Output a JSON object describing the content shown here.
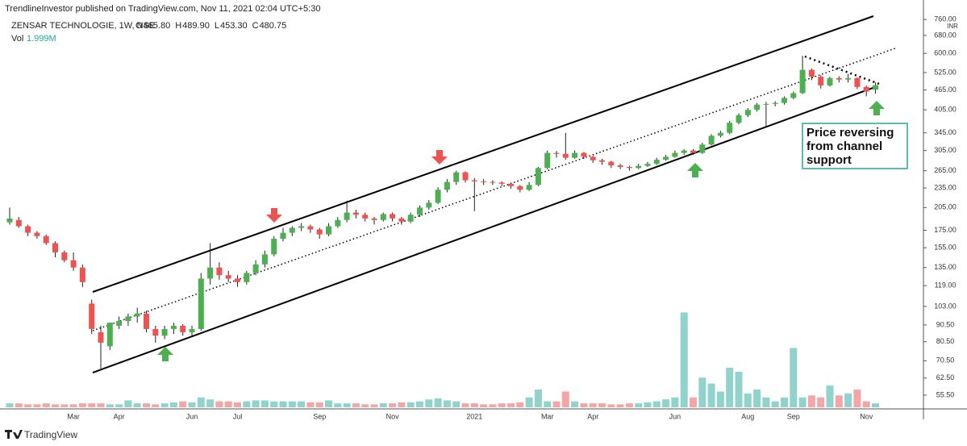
{
  "chart_data": {
    "type": "candlestick",
    "publisher": "TrendlineInvestor published on TradingView.com, Nov 11, 2021 02:04 UTC+5:30",
    "symbol": "ZENSAR TECHNOLOGIE, 1W, NSE",
    "ohlc_legend": [
      {
        "key": "O",
        "value": "465.80"
      },
      {
        "key": "H",
        "value": "489.90"
      },
      {
        "key": "L",
        "value": "453.30"
      },
      {
        "key": "C",
        "value": "480.75"
      }
    ],
    "volume_label": "Vol",
    "volume_value": "1.999M",
    "currency": "INR",
    "annotation": [
      "Price reversing",
      "from channel",
      "support"
    ],
    "footer": "TradingView",
    "log_scale": true,
    "up_color": "#4caf50",
    "down_color": "#ef5350",
    "volume_up_color": "#8fd3cc",
    "volume_down_color": "#f4a6a6",
    "ylim": [
      51,
      800
    ],
    "yticks": [
      {
        "value": 760,
        "label": "760.00"
      },
      {
        "value": 680,
        "label": "680.00"
      },
      {
        "value": 600,
        "label": "600.00"
      },
      {
        "value": 525,
        "label": "525.00"
      },
      {
        "value": 465,
        "label": "465.00"
      },
      {
        "value": 405,
        "label": "405.00"
      },
      {
        "value": 345,
        "label": "345.00"
      },
      {
        "value": 305,
        "label": "305.00"
      },
      {
        "value": 265,
        "label": "265.00"
      },
      {
        "value": 235,
        "label": "235.00"
      },
      {
        "value": 205,
        "label": "205.00"
      },
      {
        "value": 175,
        "label": "175.00"
      },
      {
        "value": 155,
        "label": "155.00"
      },
      {
        "value": 135,
        "label": "135.00"
      },
      {
        "value": 119,
        "label": "119.00"
      },
      {
        "value": 103,
        "label": "103.00"
      },
      {
        "value": 90.5,
        "label": "90.50"
      },
      {
        "value": 80.5,
        "label": "80.50"
      },
      {
        "value": 70.5,
        "label": "70.50"
      },
      {
        "value": 62.5,
        "label": "62.50"
      },
      {
        "value": 55.5,
        "label": "55.50"
      }
    ],
    "y2lim": [
      0,
      200
    ],
    "categories": [
      null,
      null,
      null,
      null,
      null,
      null,
      null,
      "Mar",
      null,
      null,
      null,
      null,
      "Apr",
      null,
      null,
      null,
      null,
      null,
      null,
      null,
      "Jun",
      null,
      null,
      null,
      null,
      "Jul",
      null,
      null,
      null,
      null,
      null,
      null,
      null,
      null,
      "Sep",
      null,
      null,
      null,
      null,
      null,
      null,
      null,
      "Nov",
      null,
      null,
      null,
      null,
      null,
      null,
      null,
      null,
      "2021",
      null,
      null,
      null,
      null,
      null,
      null,
      null,
      "Mar",
      null,
      null,
      null,
      null,
      "Apr",
      null,
      null,
      null,
      null,
      null,
      null,
      null,
      null,
      "Jun",
      null,
      null,
      null,
      null,
      null,
      null,
      null,
      "Aug",
      null,
      null,
      null,
      null,
      "Sep",
      null,
      null,
      null,
      null,
      null,
      null,
      null,
      "Nov",
      null
    ],
    "open": [
      185,
      188,
      180,
      172,
      168,
      160,
      150,
      142,
      135,
      105,
      86,
      78,
      90,
      93,
      96,
      98,
      88,
      84,
      88,
      90,
      86,
      88,
      125,
      135,
      128,
      125,
      122,
      130,
      138,
      148,
      165,
      172,
      178,
      180,
      176,
      170,
      180,
      188,
      198,
      195,
      190,
      188,
      196,
      190,
      186,
      195,
      205,
      212,
      232,
      245,
      262,
      248,
      246,
      245,
      244,
      242,
      238,
      232,
      240,
      270,
      300,
      298,
      290,
      300,
      292,
      285,
      282,
      275,
      272,
      270,
      274,
      278,
      286,
      292,
      300,
      305,
      300,
      318,
      338,
      345,
      370,
      390,
      405,
      420,
      422,
      425,
      440,
      455,
      535,
      510,
      480,
      505,
      500,
      505,
      475,
      465.8
    ],
    "high": [
      205,
      192,
      182,
      174,
      170,
      162,
      152,
      150,
      138,
      108,
      90,
      92,
      96,
      98,
      102,
      100,
      90,
      90,
      92,
      91,
      90,
      130,
      160,
      140,
      132,
      128,
      132,
      142,
      152,
      168,
      178,
      180,
      184,
      182,
      178,
      184,
      192,
      215,
      202,
      198,
      192,
      198,
      198,
      192,
      198,
      208,
      216,
      236,
      250,
      265,
      264,
      252,
      250,
      248,
      246,
      244,
      240,
      245,
      272,
      305,
      304,
      345,
      305,
      302,
      294,
      288,
      284,
      278,
      274,
      278,
      282,
      290,
      296,
      305,
      308,
      308,
      322,
      342,
      350,
      375,
      395,
      410,
      425,
      428,
      430,
      445,
      460,
      590,
      540,
      515,
      510,
      512,
      520,
      508,
      480,
      489.9
    ],
    "low": [
      182,
      178,
      168,
      165,
      158,
      145,
      140,
      132,
      118,
      85,
      66,
      76,
      88,
      90,
      92,
      86,
      80,
      82,
      85,
      84,
      84,
      87,
      120,
      124,
      122,
      118,
      120,
      128,
      135,
      146,
      162,
      168,
      174,
      172,
      165,
      168,
      178,
      185,
      190,
      186,
      182,
      186,
      186,
      182,
      184,
      192,
      202,
      210,
      228,
      240,
      244,
      200,
      240,
      240,
      238,
      234,
      228,
      230,
      238,
      268,
      290,
      286,
      288,
      288,
      280,
      276,
      270,
      268,
      265,
      268,
      272,
      276,
      284,
      290,
      296,
      296,
      298,
      316,
      334,
      342,
      366,
      385,
      400,
      360,
      415,
      420,
      436,
      452,
      498,
      470,
      476,
      490,
      490,
      468,
      445,
      453.3
    ],
    "close": [
      190,
      180,
      172,
      168,
      160,
      150,
      142,
      135,
      122,
      88,
      80,
      92,
      93,
      96,
      98,
      88,
      84,
      88,
      90,
      86,
      88,
      125,
      135,
      128,
      125,
      122,
      130,
      138,
      148,
      165,
      172,
      178,
      180,
      176,
      170,
      180,
      188,
      198,
      195,
      190,
      188,
      196,
      190,
      186,
      195,
      205,
      212,
      232,
      245,
      262,
      248,
      246,
      245,
      244,
      242,
      238,
      232,
      240,
      270,
      300,
      298,
      290,
      300,
      292,
      285,
      282,
      275,
      272,
      270,
      274,
      278,
      286,
      292,
      300,
      305,
      300,
      318,
      338,
      345,
      370,
      390,
      405,
      420,
      422,
      425,
      440,
      455,
      535,
      510,
      480,
      505,
      500,
      505,
      475,
      460,
      480.75
    ],
    "volume": [
      2,
      2,
      1.5,
      1.5,
      2,
      1.5,
      1.5,
      1.5,
      2,
      2,
      2,
      1.5,
      1.5,
      3.5,
      2,
      2,
      1.5,
      2,
      2.5,
      3,
      2.5,
      5,
      4,
      3,
      3,
      2.5,
      3,
      3.5,
      3.5,
      3,
      3,
      3,
      3,
      2.5,
      2.5,
      3.5,
      2,
      2,
      2,
      1.5,
      1.5,
      2,
      2,
      2.5,
      2.5,
      3,
      4,
      4.5,
      3.5,
      3,
      2,
      2,
      1.5,
      1.5,
      2,
      2,
      2.5,
      5,
      9,
      3,
      3,
      8,
      3,
      2,
      2,
      2,
      1.5,
      1.5,
      2,
      2,
      2.5,
      3,
      4,
      5,
      48,
      5,
      15,
      12,
      8,
      20,
      18,
      7,
      9,
      5,
      3,
      5,
      30,
      5,
      6,
      5,
      11,
      6,
      7,
      9,
      3,
      2
    ]
  }
}
